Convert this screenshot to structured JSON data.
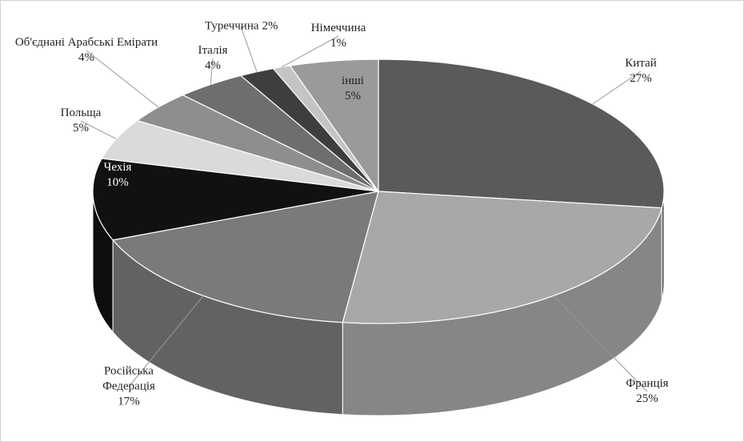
{
  "chart_data": {
    "type": "pie3d",
    "categories": [
      "Китай",
      "Франція",
      "Російська Федерація",
      "Чехія",
      "Польща",
      "Об'єднані Арабські Емірати",
      "Італія",
      "Туреччина",
      "Німеччина",
      "інші"
    ],
    "values": [
      27,
      25,
      17,
      10,
      5,
      4,
      4,
      2,
      1,
      5
    ],
    "value_labels": [
      "27%",
      "25%",
      "17%",
      "10%",
      "5%",
      "4%",
      "4%",
      "2%",
      "1%",
      "5%"
    ],
    "colors": [
      "#5a5a5a",
      "#a8a8a8",
      "#7a7a7a",
      "#111111",
      "#dadada",
      "#8e8e8e",
      "#6e6e6e",
      "#3e3e3e",
      "#c4c4c4",
      "#9a9a9a"
    ]
  }
}
